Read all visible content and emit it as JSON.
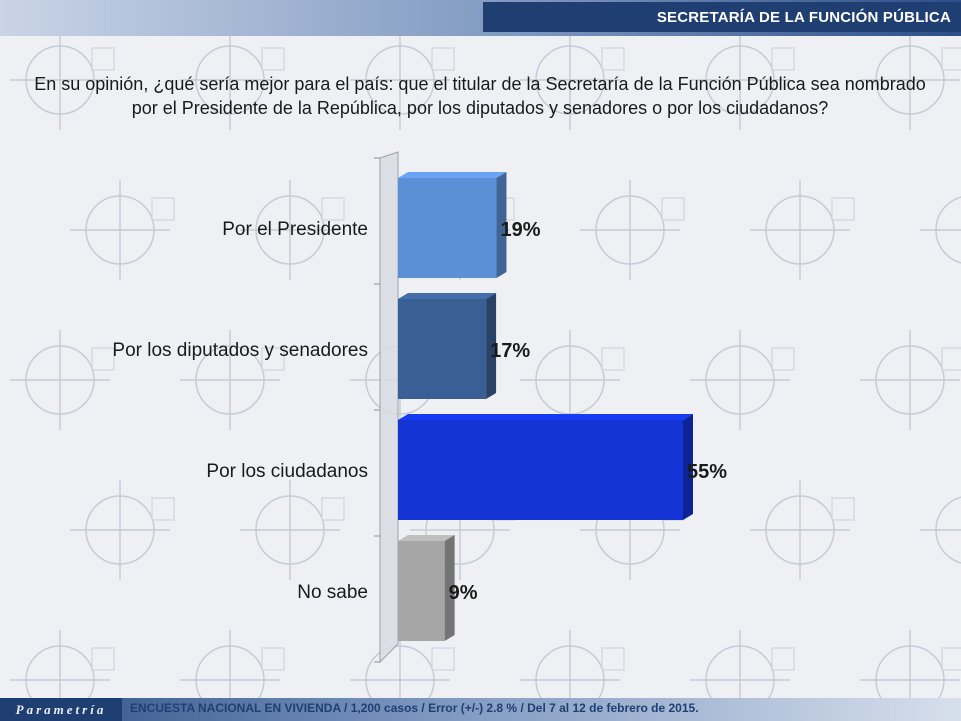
{
  "header": {
    "title": "SECRETARÍA DE LA FUNCIÓN PÚBLICA"
  },
  "question": "En su opinión, ¿qué sería mejor para el país: que el titular de la Secretaría de la Función Pública sea nombrado por el Presidente de la República, por los diputados y senadores o por los ciudadanos?",
  "footer": {
    "brand": "Parametría",
    "note": "ENCUESTA NACIONAL EN VIVIENDA / 1,200 casos / Error (+/-) 2.8 % / Del 7 al 12 de febrero de 2015."
  },
  "chart_data": {
    "type": "bar",
    "orientation": "horizontal",
    "categories": [
      "Por el Presidente",
      "Por los diputados y senadores",
      "Por los ciudadanos",
      "No sabe"
    ],
    "values": [
      19,
      17,
      55,
      9
    ],
    "value_labels": [
      "19%",
      "17%",
      "55%",
      "9%"
    ],
    "unit": "%",
    "xlim": [
      0,
      55
    ],
    "colors": [
      "#5b8fd6",
      "#3a5f95",
      "#1434d4",
      "#a6a6a6"
    ],
    "grid": false,
    "legend": "none"
  }
}
